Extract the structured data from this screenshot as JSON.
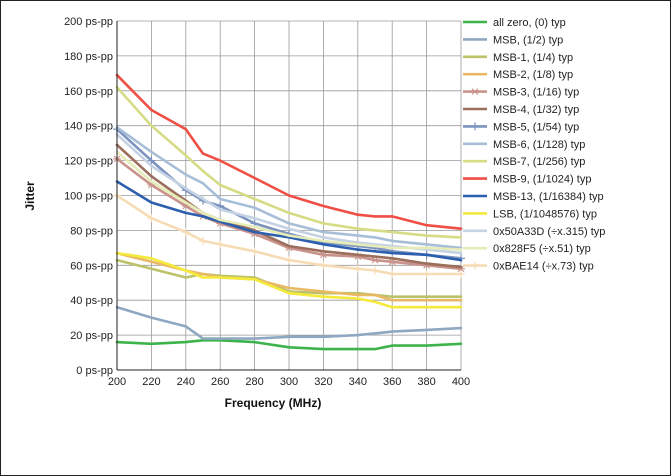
{
  "chart_data": {
    "type": "line",
    "title": "",
    "xlabel": "Frequency (MHz)",
    "ylabel": "Jitter",
    "xlim": [
      200,
      400
    ],
    "ylim": [
      0,
      200
    ],
    "x_ticks": [
      200,
      220,
      240,
      260,
      280,
      300,
      320,
      340,
      360,
      380,
      400
    ],
    "y_ticks": [
      0,
      20,
      40,
      60,
      80,
      100,
      120,
      140,
      160,
      180,
      200
    ],
    "y_tick_labels": [
      "0 ps-pp",
      "20 ps-pp",
      "40 ps-pp",
      "60 ps-pp",
      "80 ps-pp",
      "100 ps-pp",
      "120 ps-pp",
      "140 ps-pp",
      "160 ps-pp",
      "180 ps-pp",
      "200 ps-pp"
    ],
    "grid": true,
    "legend_position": "right",
    "x": [
      200,
      220,
      240,
      250,
      260,
      280,
      300,
      320,
      340,
      350,
      360,
      380,
      400
    ],
    "series": [
      {
        "name": "all zero, (0) typ",
        "color": "#3cb44b",
        "marker": "none",
        "values": [
          16,
          15,
          16,
          17,
          17,
          16,
          13,
          12,
          12,
          12,
          14,
          14,
          15
        ]
      },
      {
        "name": "MSB, (1/2) typ",
        "color": "#8fa8c2",
        "marker": "none",
        "values": [
          36,
          30,
          25,
          18,
          18,
          18,
          19,
          19,
          20,
          21,
          22,
          23,
          24
        ]
      },
      {
        "name": "MSB-1, (1/4) typ",
        "color": "#bcc26a",
        "marker": "none",
        "values": [
          63,
          58,
          53,
          55,
          54,
          53,
          45,
          44,
          44,
          43,
          42,
          42,
          42
        ]
      },
      {
        "name": "MSB-2, (1/8) typ",
        "color": "#e8b865",
        "marker": "none",
        "values": [
          67,
          62,
          57,
          55,
          53,
          52,
          47,
          45,
          43,
          43,
          40,
          40,
          40
        ]
      },
      {
        "name": "MSB-3, (1/16) typ",
        "color": "#c9928a",
        "marker": "star",
        "values": [
          121,
          106,
          94,
          88,
          84,
          78,
          70,
          66,
          65,
          63,
          62,
          60,
          58
        ]
      },
      {
        "name": "MSB-4, (1/32) typ",
        "color": "#9c6e5c",
        "marker": "none",
        "values": [
          129,
          111,
          97,
          90,
          86,
          80,
          71,
          68,
          66,
          65,
          64,
          61,
          59
        ]
      },
      {
        "name": "MSB-5, (1/54) typ",
        "color": "#7d93bf",
        "marker": "plus",
        "values": [
          138,
          120,
          103,
          97,
          94,
          84,
          78,
          73,
          71,
          70,
          68,
          66,
          64
        ]
      },
      {
        "name": "MSB-6, (1/128) typ",
        "color": "#a7bfd6",
        "marker": "none",
        "values": [
          139,
          125,
          112,
          107,
          98,
          93,
          84,
          79,
          77,
          76,
          74,
          72,
          70
        ]
      },
      {
        "name": "MSB-7, (1/256) typ",
        "color": "#d6dc84",
        "marker": "none",
        "values": [
          162,
          140,
          123,
          114,
          106,
          98,
          90,
          84,
          81,
          80,
          79,
          77,
          76
        ]
      },
      {
        "name": "MSB-9, (1/1024) typ",
        "color": "#ef4f45",
        "marker": "none",
        "values": [
          169,
          149,
          138,
          124,
          120,
          110,
          100,
          94,
          89,
          88,
          88,
          83,
          81
        ]
      },
      {
        "name": "MSB-13, (1/16384) typ",
        "color": "#2c5fad",
        "marker": "none",
        "values": [
          108,
          96,
          90,
          88,
          85,
          79,
          76,
          72,
          69,
          68,
          67,
          66,
          63
        ]
      },
      {
        "name": "LSB, (1/1048576) typ",
        "color": "#f5ea3c",
        "marker": "none",
        "values": [
          67,
          64,
          57,
          53,
          53,
          52,
          44,
          42,
          41,
          39,
          36,
          36,
          36
        ]
      },
      {
        "name": "0x50A33D (÷x.315) typ",
        "color": "#c4d2e4",
        "marker": "none",
        "values": [
          135,
          117,
          104,
          98,
          92,
          87,
          81,
          76,
          73,
          72,
          71,
          69,
          67
        ]
      },
      {
        "name": "0x828F5 (÷x.51) typ",
        "color": "#e6ecb8",
        "marker": "none",
        "values": [
          125,
          108,
          96,
          90,
          86,
          82,
          77,
          74,
          72,
          71,
          70,
          70,
          69
        ]
      },
      {
        "name": "0xBAE14 (÷x.73) typ",
        "color": "#f6dcb4",
        "marker": "plus",
        "values": [
          100,
          87,
          79,
          74,
          72,
          68,
          63,
          60,
          58,
          57,
          55,
          55,
          55
        ]
      }
    ]
  }
}
